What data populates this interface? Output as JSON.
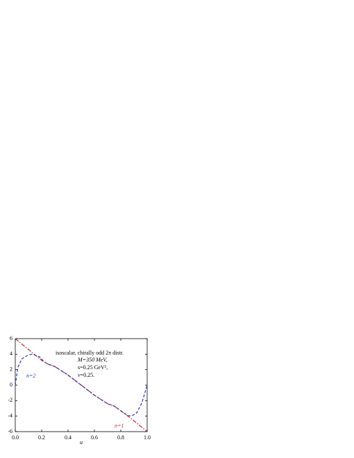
{
  "chart_data": {
    "type": "line",
    "annotations": [
      "isoscalar, chirally odd 2π distr.",
      "M=350 MeV,",
      "s=0.25 GeV²,",
      "ν=0.25."
    ],
    "xlabel": "u",
    "series": [
      {
        "name": "n=1",
        "color": "#cc2222",
        "x": [
          0,
          0.1,
          0.2,
          0.25,
          0.3,
          0.4,
          0.5,
          0.6,
          0.7,
          0.75,
          0.8,
          0.9,
          1.0
        ],
        "values": [
          6,
          4.6,
          3.2,
          2.7,
          2.4,
          1.3,
          0,
          -1.3,
          -2.4,
          -2.7,
          -3.3,
          -4.6,
          -6
        ]
      },
      {
        "name": "n=2",
        "color": "#2233cc",
        "x": [
          0,
          0.02,
          0.05,
          0.1,
          0.13,
          0.18,
          0.22,
          0.25,
          0.3,
          0.4,
          0.5,
          0.6,
          0.7,
          0.75,
          0.8,
          0.85,
          0.88,
          0.92,
          0.96,
          1.0
        ],
        "values": [
          0,
          2.3,
          3.4,
          3.9,
          4.0,
          3.7,
          3.0,
          2.7,
          2.4,
          1.3,
          0,
          -1.3,
          -2.4,
          -2.7,
          -3.3,
          -3.9,
          -4.0,
          -3.6,
          -2.3,
          0
        ]
      }
    ],
    "xlim": [
      0,
      1.0
    ],
    "ylim": [
      -6,
      6
    ],
    "xticks": [
      {
        "value": 0,
        "label": "0.0"
      },
      0.2,
      0.4,
      0.6,
      0.8,
      {
        "value": 1,
        "label": "1.0"
      }
    ],
    "yticks": [
      -6,
      -4,
      -2,
      0,
      2,
      4,
      6
    ]
  }
}
